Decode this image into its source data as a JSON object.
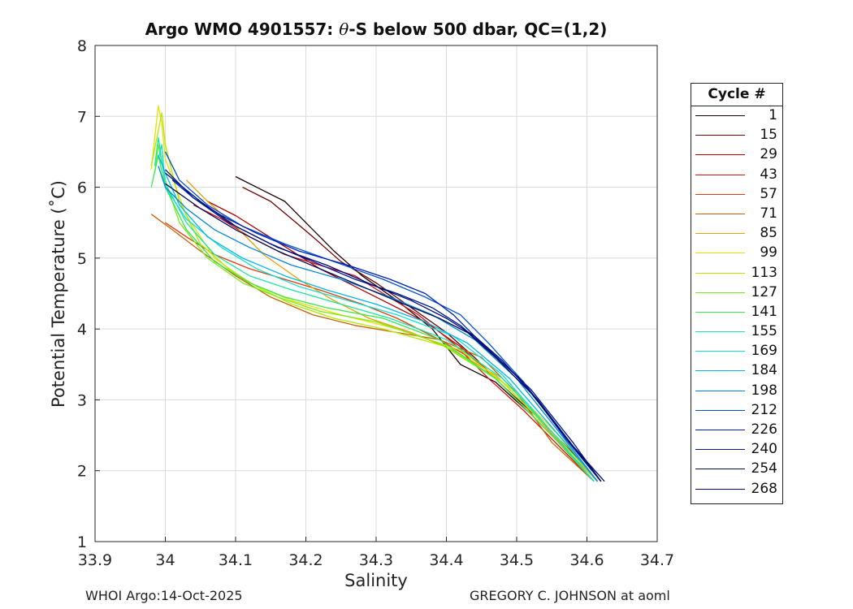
{
  "chart_data": {
    "type": "line",
    "title": "Argo WMO 4901557: θ-S below 500 dbar,  QC=(1,2)",
    "title_prefix": "Argo WMO 4901557: ",
    "title_theta": "θ",
    "title_suffix": "-S below 500 dbar,  QC=(1,2)",
    "xlabel": "Salinity",
    "ylabel": "Potential Temperature (˚C)",
    "xlim": [
      33.9,
      34.7
    ],
    "ylim": [
      1,
      8
    ],
    "xticks": [
      "33.9",
      "34",
      "34.1",
      "34.2",
      "34.3",
      "34.4",
      "34.5",
      "34.6",
      "34.7"
    ],
    "yticks": [
      "1",
      "2",
      "3",
      "4",
      "5",
      "6",
      "7",
      "8"
    ],
    "grid": true,
    "legend": {
      "title": "Cycle #",
      "placement": "right",
      "entries": [
        {
          "label": "1",
          "color": "#1e0000"
        },
        {
          "label": "15",
          "color": "#6e0000"
        },
        {
          "label": "29",
          "color": "#b00000"
        },
        {
          "label": "43",
          "color": "#d81010"
        },
        {
          "label": "57",
          "color": "#e03a10"
        },
        {
          "label": "71",
          "color": "#c86000"
        },
        {
          "label": "85",
          "color": "#e8a000"
        },
        {
          "label": "99",
          "color": "#e8e000"
        },
        {
          "label": "113",
          "color": "#b4e800"
        },
        {
          "label": "127",
          "color": "#7aeb1a"
        },
        {
          "label": "141",
          "color": "#3ae84a"
        },
        {
          "label": "155",
          "color": "#18e8a0"
        },
        {
          "label": "169",
          "color": "#10e0d0"
        },
        {
          "label": "184",
          "color": "#00b8e8"
        },
        {
          "label": "198",
          "color": "#0088d8"
        },
        {
          "label": "212",
          "color": "#0050d0"
        },
        {
          "label": "226",
          "color": "#0020b8"
        },
        {
          "label": "240",
          "color": "#001890"
        },
        {
          "label": "254",
          "color": "#00105e"
        },
        {
          "label": "268",
          "color": "#000a78"
        }
      ]
    },
    "series": [
      {
        "name": "1",
        "color": "#1e0000",
        "x": [
          34.1,
          34.14,
          34.17,
          34.2,
          34.24,
          34.28,
          34.33,
          34.38,
          34.42,
          34.47,
          34.52,
          34.57,
          34.61
        ],
        "y": [
          6.15,
          5.95,
          5.8,
          5.5,
          5.1,
          4.75,
          4.4,
          4.0,
          3.5,
          3.25,
          2.8,
          2.3,
          1.85
        ]
      },
      {
        "name": "15",
        "color": "#6e0000",
        "x": [
          34.11,
          34.15,
          34.18,
          34.21,
          34.25,
          34.3,
          34.35,
          34.4,
          34.44,
          34.48,
          34.53,
          34.58,
          34.615
        ],
        "y": [
          6.0,
          5.8,
          5.55,
          5.3,
          4.95,
          4.65,
          4.3,
          3.95,
          3.6,
          3.2,
          2.75,
          2.25,
          1.85
        ]
      },
      {
        "name": "29",
        "color": "#b00000",
        "x": [
          34.06,
          34.1,
          34.14,
          34.18,
          34.22,
          34.27,
          34.32,
          34.37,
          34.42,
          34.47,
          34.52,
          34.57,
          34.61
        ],
        "y": [
          5.8,
          5.6,
          5.35,
          5.1,
          4.85,
          4.6,
          4.35,
          4.1,
          3.75,
          3.3,
          2.8,
          2.3,
          1.85
        ]
      },
      {
        "name": "43",
        "color": "#d81010",
        "x": [
          34.04,
          34.08,
          34.12,
          34.17,
          34.22,
          34.27,
          34.31,
          34.36,
          34.41,
          34.46,
          34.51,
          34.56,
          34.61
        ],
        "y": [
          5.75,
          5.55,
          5.3,
          5.05,
          4.9,
          4.75,
          4.5,
          4.2,
          3.8,
          3.3,
          2.85,
          2.35,
          1.85
        ]
      },
      {
        "name": "57",
        "color": "#e03a10",
        "x": [
          34.0,
          34.03,
          34.07,
          34.12,
          34.17,
          34.22,
          34.28,
          34.33,
          34.39,
          34.45,
          34.5,
          34.56,
          34.61
        ],
        "y": [
          5.5,
          5.3,
          5.05,
          4.85,
          4.7,
          4.55,
          4.35,
          4.15,
          3.85,
          3.5,
          3.0,
          2.4,
          1.85
        ]
      },
      {
        "name": "71",
        "color": "#c86000",
        "x": [
          33.98,
          34.01,
          34.05,
          34.1,
          34.15,
          34.21,
          34.27,
          34.33,
          34.39,
          34.45,
          34.5,
          34.55,
          34.61
        ],
        "y": [
          5.62,
          5.4,
          5.1,
          4.75,
          4.45,
          4.2,
          4.05,
          3.95,
          3.85,
          3.6,
          3.1,
          2.4,
          1.85
        ]
      },
      {
        "name": "85",
        "color": "#e8a000",
        "x": [
          34.03,
          34.06,
          34.1,
          34.14,
          34.19,
          34.24,
          34.29,
          34.35,
          34.41,
          34.47,
          34.52,
          34.57,
          34.615
        ],
        "y": [
          6.1,
          5.8,
          5.45,
          5.05,
          4.7,
          4.4,
          4.15,
          3.95,
          3.7,
          3.35,
          2.85,
          2.3,
          1.85
        ]
      },
      {
        "name": "99",
        "color": "#e8e000",
        "x": [
          33.98,
          33.985,
          33.99,
          33.995,
          34.0,
          34.03,
          34.07,
          34.12,
          34.18,
          34.25,
          34.33,
          34.42,
          34.5,
          34.57,
          34.615
        ],
        "y": [
          6.25,
          6.7,
          7.15,
          6.9,
          6.4,
          5.6,
          5.0,
          4.65,
          4.4,
          4.2,
          4.0,
          3.7,
          3.1,
          2.4,
          1.85
        ]
      },
      {
        "name": "113",
        "color": "#b4e800",
        "x": [
          33.98,
          33.99,
          33.995,
          34.0,
          34.02,
          34.05,
          34.09,
          34.13,
          34.18,
          34.24,
          34.31,
          34.4,
          34.48,
          34.56,
          34.615
        ],
        "y": [
          6.3,
          6.8,
          7.05,
          6.6,
          5.8,
          5.2,
          4.85,
          4.6,
          4.35,
          4.15,
          4.0,
          3.75,
          3.25,
          2.45,
          1.85
        ]
      },
      {
        "name": "127",
        "color": "#7aeb1a",
        "x": [
          33.985,
          33.99,
          34.0,
          34.02,
          34.06,
          34.11,
          34.16,
          34.22,
          34.3,
          34.39,
          34.47,
          34.55,
          34.61
        ],
        "y": [
          6.2,
          6.6,
          6.1,
          5.5,
          5.0,
          4.65,
          4.45,
          4.25,
          4.1,
          3.8,
          3.3,
          2.5,
          1.85
        ]
      },
      {
        "name": "141",
        "color": "#3ae84a",
        "x": [
          33.98,
          33.99,
          34.0,
          34.03,
          34.07,
          34.12,
          34.17,
          34.23,
          34.31,
          34.39,
          34.47,
          34.55,
          34.61
        ],
        "y": [
          6.0,
          6.45,
          6.0,
          5.4,
          4.95,
          4.65,
          4.45,
          4.3,
          4.15,
          3.85,
          3.3,
          2.5,
          1.85
        ]
      },
      {
        "name": "155",
        "color": "#18e8a0",
        "x": [
          33.985,
          33.99,
          34.0,
          34.03,
          34.07,
          34.12,
          34.18,
          34.25,
          34.32,
          34.4,
          34.48,
          34.55,
          34.61
        ],
        "y": [
          6.3,
          6.7,
          6.05,
          5.5,
          5.05,
          4.75,
          4.55,
          4.35,
          4.15,
          3.85,
          3.3,
          2.55,
          1.85
        ]
      },
      {
        "name": "169",
        "color": "#10e0d0",
        "x": [
          33.99,
          33.995,
          34.0,
          34.03,
          34.08,
          34.13,
          34.19,
          34.26,
          34.33,
          34.41,
          34.48,
          34.55,
          34.61
        ],
        "y": [
          6.4,
          6.6,
          6.0,
          5.55,
          5.15,
          4.85,
          4.6,
          4.4,
          4.2,
          3.9,
          3.35,
          2.55,
          1.85
        ]
      },
      {
        "name": "184",
        "color": "#00b8e8",
        "x": [
          33.99,
          34.0,
          34.02,
          34.06,
          34.11,
          34.17,
          34.23,
          34.3,
          34.37,
          34.43,
          34.49,
          34.56,
          34.615
        ],
        "y": [
          6.45,
          6.2,
          5.75,
          5.3,
          5.0,
          4.75,
          4.55,
          4.35,
          4.1,
          3.8,
          3.3,
          2.5,
          1.85
        ]
      },
      {
        "name": "198",
        "color": "#0088d8",
        "x": [
          33.99,
          34.0,
          34.03,
          34.07,
          34.12,
          34.18,
          34.25,
          34.32,
          34.38,
          34.44,
          34.5,
          34.56,
          34.615
        ],
        "y": [
          6.3,
          6.0,
          5.7,
          5.4,
          5.15,
          4.9,
          4.7,
          4.45,
          4.2,
          3.85,
          3.3,
          2.55,
          1.85
        ]
      },
      {
        "name": "212",
        "color": "#0050d0",
        "x": [
          34.0,
          34.02,
          34.06,
          34.11,
          34.17,
          34.24,
          34.31,
          34.37,
          34.42,
          34.46,
          34.51,
          34.57,
          34.62
        ],
        "y": [
          6.5,
          6.1,
          5.75,
          5.45,
          5.2,
          4.95,
          4.7,
          4.45,
          4.2,
          3.8,
          3.25,
          2.45,
          1.85
        ]
      },
      {
        "name": "226",
        "color": "#0020b8",
        "x": [
          34.01,
          34.04,
          34.08,
          34.13,
          34.19,
          34.26,
          34.32,
          34.37,
          34.41,
          34.45,
          34.51,
          34.57,
          34.62
        ],
        "y": [
          6.1,
          5.85,
          5.6,
          5.35,
          5.1,
          4.9,
          4.7,
          4.5,
          4.2,
          3.8,
          3.25,
          2.45,
          1.85
        ]
      },
      {
        "name": "240",
        "color": "#001890",
        "x": [
          34.0,
          34.04,
          34.09,
          34.15,
          34.21,
          34.27,
          34.33,
          34.38,
          34.42,
          34.46,
          34.52,
          34.58,
          34.62
        ],
        "y": [
          6.25,
          5.85,
          5.5,
          5.2,
          4.95,
          4.7,
          4.5,
          4.3,
          4.05,
          3.7,
          3.15,
          2.4,
          1.85
        ]
      },
      {
        "name": "254",
        "color": "#00105e",
        "x": [
          34.0,
          34.05,
          34.1,
          34.16,
          34.22,
          34.28,
          34.34,
          34.39,
          34.43,
          34.47,
          34.52,
          34.58,
          34.62
        ],
        "y": [
          6.05,
          5.7,
          5.4,
          5.1,
          4.85,
          4.6,
          4.35,
          4.15,
          3.95,
          3.6,
          3.1,
          2.35,
          1.85
        ]
      },
      {
        "name": "268",
        "color": "#000a78",
        "x": [
          34.0,
          34.05,
          34.1,
          34.16,
          34.23,
          34.3,
          34.35,
          34.4,
          34.44,
          34.48,
          34.53,
          34.58,
          34.625
        ],
        "y": [
          6.2,
          5.8,
          5.45,
          5.15,
          4.9,
          4.6,
          4.4,
          4.15,
          3.9,
          3.55,
          3.0,
          2.35,
          1.85
        ]
      }
    ]
  },
  "footer": {
    "left": "WHOI Argo:14-Oct-2025",
    "right": "GREGORY C. JOHNSON at aoml"
  }
}
